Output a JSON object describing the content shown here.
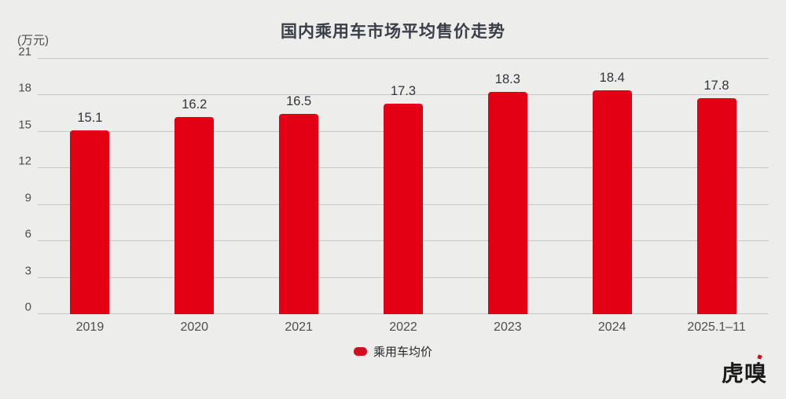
{
  "chart_data": {
    "type": "bar",
    "title": "国内乘用车市场平均售价走势",
    "unit_label": "(万元)",
    "categories": [
      "2019",
      "2020",
      "2021",
      "2022",
      "2023",
      "2024",
      "2025.1–11"
    ],
    "series": [
      {
        "name": "乘用车均价",
        "values": [
          15.1,
          16.2,
          16.5,
          17.3,
          18.3,
          18.4,
          17.8
        ]
      }
    ],
    "value_labels": [
      "15.1",
      "16.2",
      "16.5",
      "17.3",
      "18.3",
      "18.4",
      "17.8"
    ],
    "xlabel": "",
    "ylabel": "(万元)",
    "ylim": [
      0,
      21
    ],
    "yticks": [
      0,
      3,
      6,
      9,
      12,
      15,
      18,
      21
    ],
    "grid": true,
    "legend": {
      "position": "bottom-center",
      "label": "乘用车均价"
    },
    "colors": {
      "bar": "#E30014",
      "legend_marker": "#D50E1E",
      "background": "#EDEDEB",
      "gridline": "#C7C7C5",
      "title_text": "#3A3E48",
      "axis_text": "#4D4D4D",
      "value_label_text": "#30343C"
    }
  },
  "branding": {
    "logo_text": "虎嗅"
  }
}
